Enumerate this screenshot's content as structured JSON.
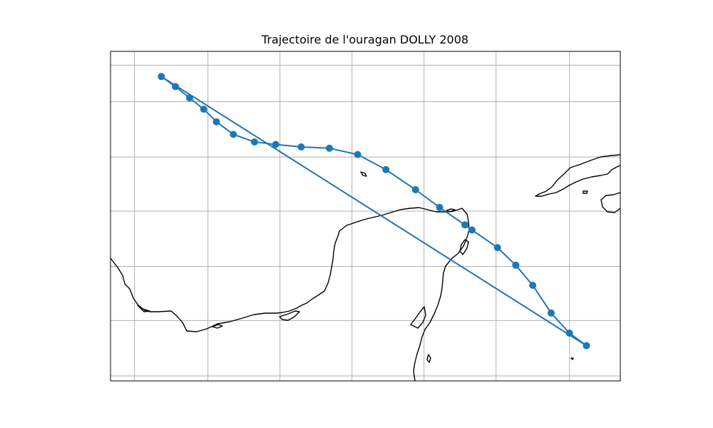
{
  "chart_data": {
    "type": "line",
    "title": "Trajectoire de l'ouragan DOLLY 2008",
    "xlabel": "",
    "ylabel": "",
    "xlim": [
      -93.35,
      -75.3
    ],
    "ylim": [
      17.0,
      30.1
    ],
    "gridlines_x": [
      -92.5,
      -89.9,
      -87.35,
      -84.8,
      -82.25,
      -79.7,
      -77.1
    ],
    "gridlines_y": [
      17.2,
      19.4,
      21.55,
      23.75,
      25.9,
      28.1,
      29.55
    ],
    "grid": true,
    "series": [
      {
        "color": "#1f77b4",
        "marker": "circle",
        "points": [
          {
            "x": -76.5,
            "y": 18.4
          },
          {
            "x": -77.1,
            "y": 18.9
          },
          {
            "x": -77.75,
            "y": 19.7
          },
          {
            "x": -78.4,
            "y": 20.8
          },
          {
            "x": -79.0,
            "y": 21.6
          },
          {
            "x": -79.65,
            "y": 22.3
          },
          {
            "x": -80.55,
            "y": 23.0
          },
          {
            "x": -80.8,
            "y": 23.2
          },
          {
            "x": -81.7,
            "y": 23.9
          },
          {
            "x": -82.55,
            "y": 24.6
          },
          {
            "x": -83.6,
            "y": 25.4
          },
          {
            "x": -84.6,
            "y": 26.0
          },
          {
            "x": -85.6,
            "y": 26.25
          },
          {
            "x": -86.6,
            "y": 26.3
          },
          {
            "x": -87.5,
            "y": 26.4
          },
          {
            "x": -88.25,
            "y": 26.5
          },
          {
            "x": -89.0,
            "y": 26.8
          },
          {
            "x": -89.6,
            "y": 27.3
          },
          {
            "x": -90.05,
            "y": 27.8
          },
          {
            "x": -90.55,
            "y": 28.25
          },
          {
            "x": -91.05,
            "y": 28.7
          },
          {
            "x": -91.55,
            "y": 29.1
          },
          {
            "x": -76.5,
            "y": 18.4
          }
        ]
      }
    ]
  }
}
